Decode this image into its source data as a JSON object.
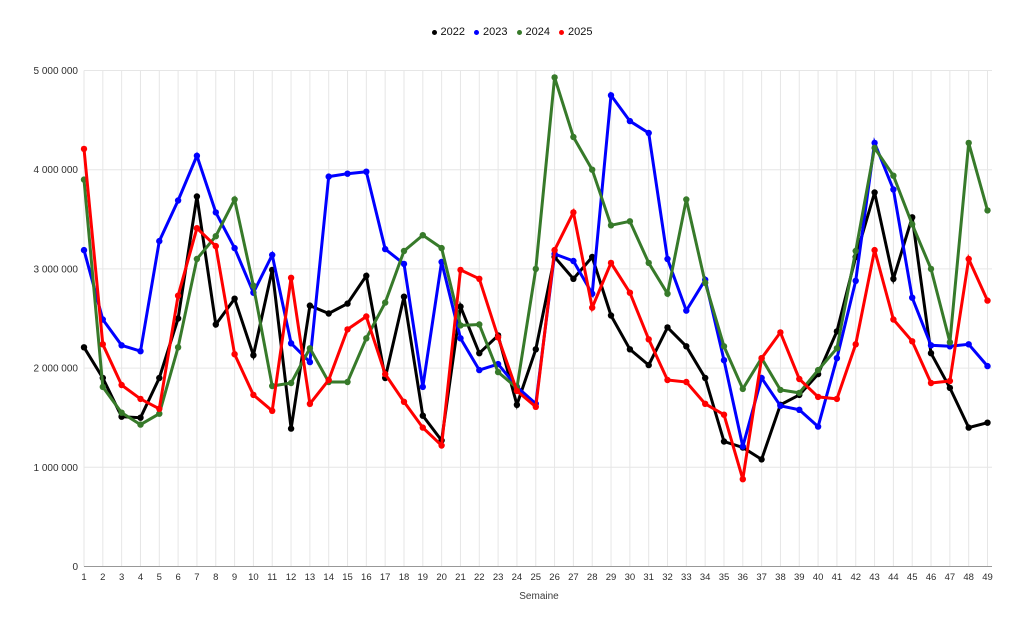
{
  "legend": {
    "items": [
      {
        "label": "2022",
        "color": "#000000"
      },
      {
        "label": "2023",
        "color": "#0000ff"
      },
      {
        "label": "2024",
        "color": "#377a2a"
      },
      {
        "label": "2025",
        "color": "#ff0000"
      }
    ]
  },
  "chart_data": {
    "type": "line",
    "title": "",
    "xlabel": "Semaine",
    "ylabel": "",
    "x": [
      1,
      2,
      3,
      4,
      5,
      6,
      7,
      8,
      9,
      10,
      11,
      12,
      13,
      14,
      15,
      16,
      17,
      18,
      19,
      20,
      21,
      22,
      23,
      24,
      25,
      26,
      27,
      28,
      29,
      30,
      31,
      32,
      33,
      34,
      35,
      36,
      37,
      38,
      39,
      40,
      41,
      42,
      43,
      44,
      45,
      46,
      47,
      48,
      49
    ],
    "ylim": [
      0,
      5000000
    ],
    "y_tick_values": [
      0,
      1000000,
      2000000,
      3000000,
      4000000,
      5000000
    ],
    "y_tick_labels": [
      "0",
      "1 000 000",
      "2 000 000",
      "3 000 000",
      "4 000 000",
      "5 000 000"
    ],
    "grid": true,
    "legend_position": "top",
    "series": [
      {
        "name": "2022",
        "color": "#000000",
        "values": [
          2210000,
          1900000,
          1510000,
          1500000,
          1900000,
          2500000,
          3730000,
          2440000,
          2700000,
          2130000,
          2990000,
          1390000,
          2630000,
          2550000,
          2650000,
          2930000,
          1900000,
          2720000,
          1520000,
          1270000,
          2620000,
          2150000,
          2330000,
          1630000,
          2190000,
          3120000,
          2900000,
          3120000,
          2530000,
          2190000,
          2030000,
          2410000,
          2220000,
          1900000,
          1260000,
          1200000,
          1080000,
          1630000,
          1730000,
          1940000,
          2370000,
          3120000,
          3770000,
          2900000,
          3520000,
          2150000,
          1800000,
          1400000,
          1450000
        ]
      },
      {
        "name": "2023",
        "color": "#0000ff",
        "values": [
          3190000,
          2490000,
          2230000,
          2170000,
          3280000,
          3690000,
          4140000,
          3570000,
          3210000,
          2760000,
          3140000,
          2250000,
          2060000,
          3930000,
          3960000,
          3980000,
          3200000,
          3050000,
          1810000,
          3070000,
          2300000,
          1980000,
          2040000,
          1810000,
          1640000,
          3150000,
          3080000,
          2750000,
          4750000,
          4490000,
          4370000,
          3100000,
          2580000,
          2890000,
          2080000,
          1210000,
          1900000,
          1620000,
          1580000,
          1410000,
          2100000,
          2880000,
          4270000,
          3800000,
          2710000,
          2230000,
          2220000,
          2240000,
          2020000
        ]
      },
      {
        "name": "2024",
        "color": "#377a2a",
        "values": [
          3900000,
          1810000,
          1550000,
          1430000,
          1540000,
          2210000,
          3100000,
          3330000,
          3700000,
          2830000,
          1820000,
          1850000,
          2200000,
          1860000,
          1860000,
          2300000,
          2660000,
          3180000,
          3340000,
          3210000,
          2430000,
          2440000,
          1960000,
          1800000,
          3000000,
          4930000,
          4330000,
          4000000,
          3440000,
          3480000,
          3060000,
          2750000,
          3700000,
          2860000,
          2220000,
          1790000,
          2100000,
          1780000,
          1750000,
          1980000,
          2200000,
          3180000,
          4220000,
          3940000,
          3450000,
          3000000,
          2260000,
          4270000,
          3590000
        ]
      },
      {
        "name": "2025",
        "color": "#ff0000",
        "values": [
          4210000,
          2240000,
          1830000,
          1690000,
          1590000,
          2730000,
          3410000,
          3230000,
          2140000,
          1730000,
          1570000,
          2910000,
          1640000,
          1880000,
          2390000,
          2520000,
          1940000,
          1660000,
          1400000,
          1220000,
          2990000,
          2900000,
          2310000,
          1770000,
          1610000,
          3190000,
          3570000,
          2610000,
          3060000,
          2760000,
          2290000,
          1880000,
          1860000,
          1640000,
          1530000,
          880000,
          2100000,
          2360000,
          1890000,
          1710000,
          1690000,
          2240000,
          3190000,
          2490000,
          2270000,
          1850000,
          1870000,
          3100000,
          2680000
        ]
      }
    ],
    "style": {
      "grid_color": "#e6e6e6",
      "axis_color": "#989898",
      "tick_label_color": "#2e2e2e",
      "line_width": 3,
      "marker_radius": 3.2
    }
  }
}
